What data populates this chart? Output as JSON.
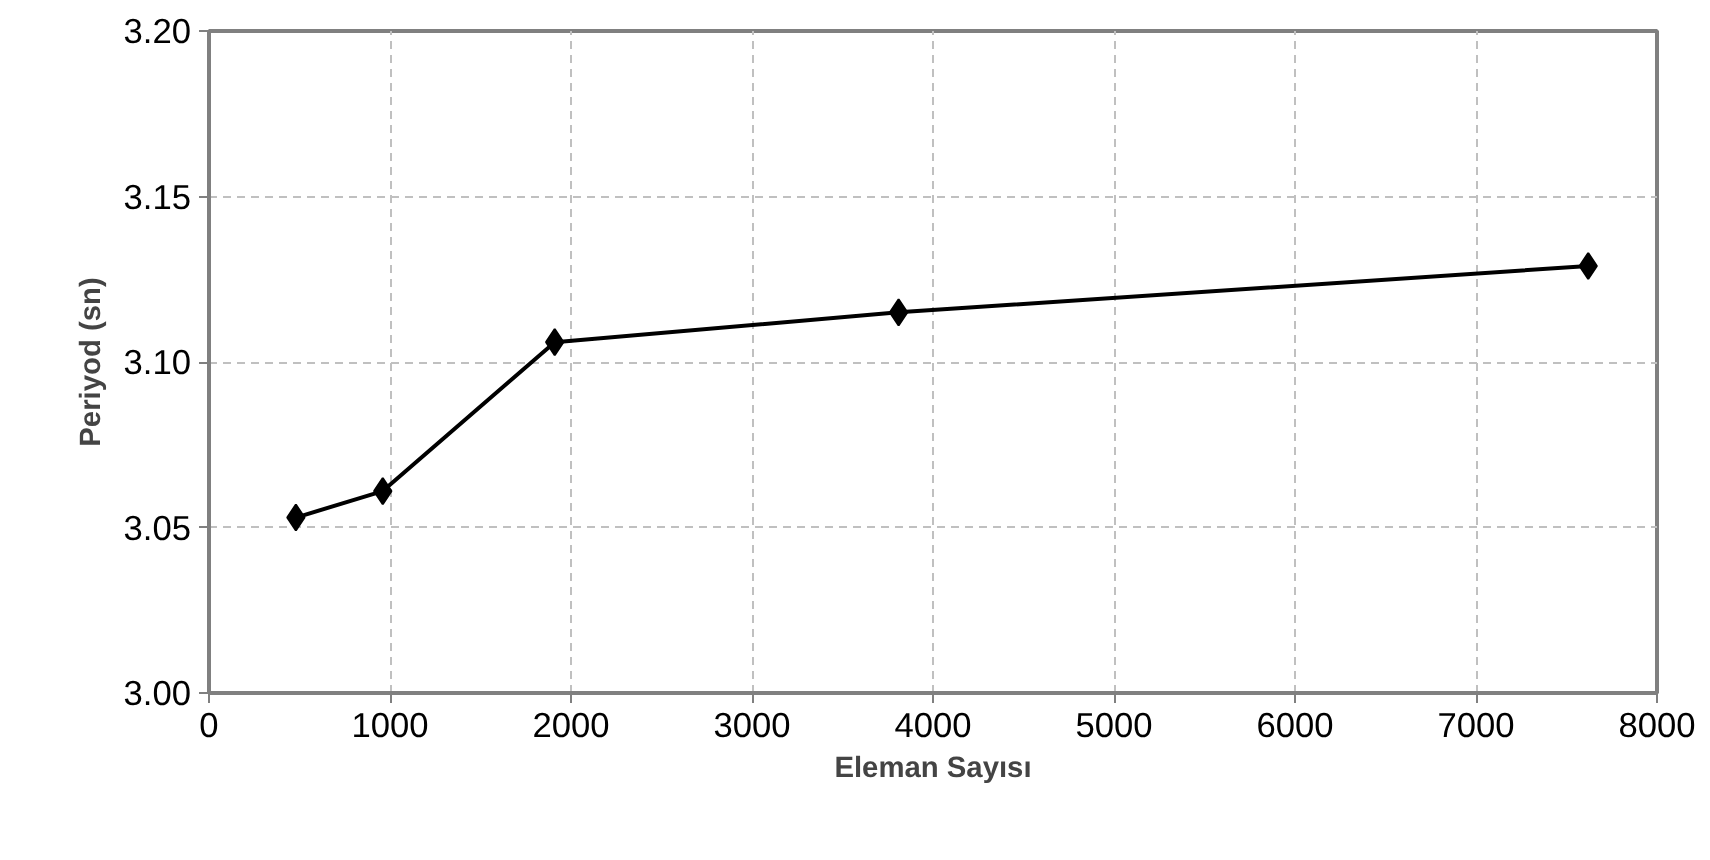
{
  "chart_data": {
    "type": "line",
    "xlabel": "Eleman Sayısı",
    "ylabel": "Periyod (sn)",
    "x": [
      480,
      960,
      1910,
      3810,
      7620
    ],
    "series": [
      {
        "color": "#000000",
        "values": [
          3.053,
          3.061,
          3.106,
          3.115,
          3.129
        ]
      }
    ],
    "xlim": [
      0,
      8000
    ],
    "xticks": [
      0,
      1000,
      2000,
      3000,
      4000,
      5000,
      6000,
      7000,
      8000
    ],
    "ylim": [
      3.0,
      3.2
    ],
    "yticks": [
      {
        "value": 3.0,
        "label": "3.00"
      },
      {
        "value": 3.05,
        "label": "3.05"
      },
      {
        "value": 3.1,
        "label": "3.10"
      },
      {
        "value": 3.15,
        "label": "3.15"
      },
      {
        "value": 3.2,
        "label": "3.20"
      }
    ],
    "grid": true,
    "marker": "diamond",
    "line_style": "solid"
  }
}
